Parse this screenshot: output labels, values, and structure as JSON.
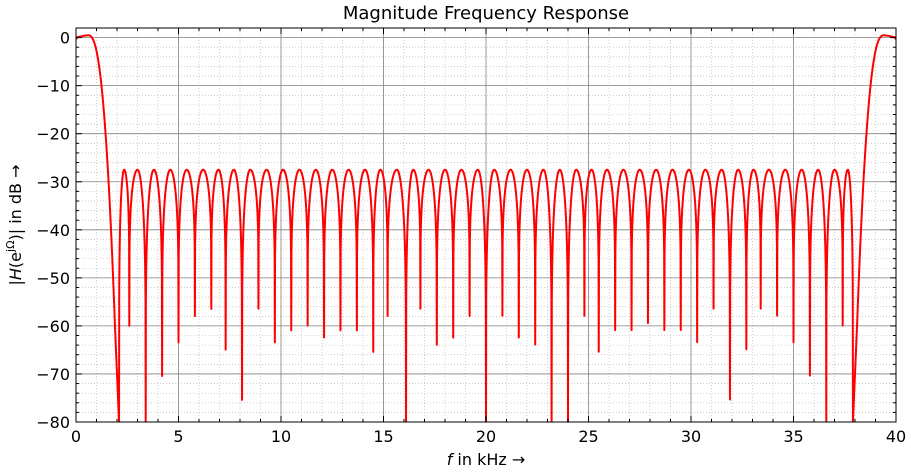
{
  "chart_data": {
    "type": "line",
    "title": "Magnitude Frequency Response",
    "xlabel": {
      "italic": "f",
      "rest": " in kHz →"
    },
    "ylabel": {
      "pre": "|",
      "italic": "H",
      "mid": "(e",
      "sup": "jΩ",
      "post": ")| in dB →"
    },
    "xlim": [
      0,
      40
    ],
    "ylim": [
      -80,
      2
    ],
    "xticks": [
      0,
      5,
      10,
      15,
      20,
      25,
      30,
      35,
      40
    ],
    "xtick_labels": [
      "0",
      "5",
      "10",
      "15",
      "20",
      "25",
      "30",
      "35",
      "40"
    ],
    "yticks": [
      0,
      -10,
      -20,
      -30,
      -40,
      -50,
      -60,
      -70,
      -80
    ],
    "ytick_labels": [
      "0",
      "−10",
      "−20",
      "−30",
      "−40",
      "−50",
      "−60",
      "−70",
      "−80"
    ],
    "grid": {
      "major": true,
      "minor": true
    },
    "line_color": "#ff0000",
    "series": [
      {
        "passband_peak_db": 0.5,
        "passband_edge_khz": 1.9,
        "stopband_start_khz": 2.05,
        "stopband_end_khz": 37.95,
        "stopband_ripple_db": -27.5,
        "notch_freqs_khz": [
          2.1,
          2.6,
          3.4,
          4.2,
          5.0,
          5.8,
          6.6,
          7.3,
          8.1,
          8.9,
          9.7,
          10.5,
          11.3,
          12.1,
          12.9,
          13.7,
          14.5,
          15.2,
          16.1,
          16.8,
          17.6,
          18.4,
          19.2,
          20.0,
          20.8,
          21.6,
          22.4,
          23.2,
          24.0,
          24.8,
          25.5,
          26.3,
          27.1,
          27.9,
          28.7,
          29.5,
          30.3,
          31.1,
          31.9,
          32.7,
          33.4,
          34.2,
          35.0,
          35.8,
          36.6,
          37.4,
          37.9
        ],
        "notch_depths_db": [
          -80,
          -60,
          -80,
          -70.5,
          -63.5,
          -58,
          -56.5,
          -65,
          -75.5,
          -56.5,
          -63.5,
          -61,
          -60,
          -62.5,
          -61,
          -61,
          -65.5,
          -58,
          -80,
          -56.5,
          -64,
          -62.5,
          -58,
          -80,
          -58,
          -62.5,
          -64,
          -80,
          -80,
          -58,
          -65.5,
          -61,
          -61,
          -59.5,
          -61,
          -61,
          -63.5,
          -56.5,
          -75.5,
          -65,
          -56.5,
          -58,
          -63.5,
          -70.5,
          -80,
          -60,
          -80
        ]
      }
    ]
  }
}
